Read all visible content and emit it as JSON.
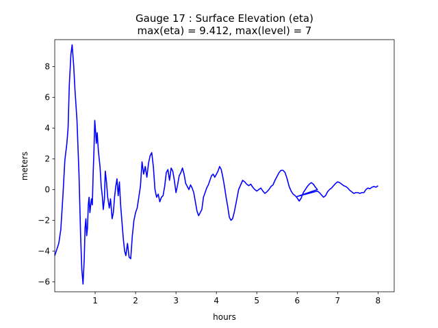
{
  "chart_data": {
    "type": "line",
    "title": "Gauge 17 : Surface Elevation (eta)",
    "subtitle": "max(eta) =   9.412,    max(level) = 7",
    "xlabel": "hours",
    "ylabel": "meters",
    "xlim": [
      0.0,
      8.4
    ],
    "ylim": [
      -6.65,
      9.75
    ],
    "xticks": [
      1,
      2,
      3,
      4,
      5,
      6,
      7,
      8
    ],
    "yticks": [
      -6,
      -4,
      -2,
      0,
      2,
      4,
      6,
      8
    ],
    "line_color": "#0000ff",
    "grid": false,
    "series": [
      {
        "name": "eta",
        "points": [
          [
            0.0,
            -4.3
          ],
          [
            0.05,
            -3.9
          ],
          [
            0.1,
            -3.5
          ],
          [
            0.15,
            -2.6
          ],
          [
            0.2,
            -0.5
          ],
          [
            0.25,
            1.9
          ],
          [
            0.3,
            3.0
          ],
          [
            0.33,
            4.0
          ],
          [
            0.36,
            6.8
          ],
          [
            0.4,
            8.8
          ],
          [
            0.43,
            9.412
          ],
          [
            0.47,
            8.0
          ],
          [
            0.5,
            6.5
          ],
          [
            0.55,
            4.5
          ],
          [
            0.6,
            1.0
          ],
          [
            0.64,
            -3.0
          ],
          [
            0.67,
            -5.2
          ],
          [
            0.7,
            -6.15
          ],
          [
            0.73,
            -4.5
          ],
          [
            0.75,
            -2.5
          ],
          [
            0.77,
            -1.9
          ],
          [
            0.79,
            -3.0
          ],
          [
            0.81,
            -2.5
          ],
          [
            0.83,
            -1.0
          ],
          [
            0.85,
            -0.5
          ],
          [
            0.87,
            -1.5
          ],
          [
            0.89,
            -1.0
          ],
          [
            0.91,
            -0.6
          ],
          [
            0.93,
            -1.0
          ],
          [
            0.95,
            1.0
          ],
          [
            0.97,
            2.5
          ],
          [
            0.99,
            4.5
          ],
          [
            1.01,
            3.8
          ],
          [
            1.03,
            3.0
          ],
          [
            1.05,
            3.7
          ],
          [
            1.08,
            2.5
          ],
          [
            1.12,
            1.5
          ],
          [
            1.15,
            0.2
          ],
          [
            1.18,
            -0.5
          ],
          [
            1.2,
            -1.3
          ],
          [
            1.23,
            -0.6
          ],
          [
            1.25,
            1.2
          ],
          [
            1.28,
            0.5
          ],
          [
            1.31,
            -0.5
          ],
          [
            1.35,
            -1.2
          ],
          [
            1.38,
            -0.6
          ],
          [
            1.42,
            -1.9
          ],
          [
            1.45,
            -1.5
          ],
          [
            1.48,
            -0.5
          ],
          [
            1.51,
            0.2
          ],
          [
            1.54,
            0.7
          ],
          [
            1.57,
            -0.4
          ],
          [
            1.6,
            0.5
          ],
          [
            1.63,
            -1.0
          ],
          [
            1.66,
            -2.0
          ],
          [
            1.7,
            -3.3
          ],
          [
            1.73,
            -4.0
          ],
          [
            1.76,
            -4.3
          ],
          [
            1.8,
            -3.5
          ],
          [
            1.84,
            -4.4
          ],
          [
            1.88,
            -4.5
          ],
          [
            1.92,
            -3.0
          ],
          [
            1.96,
            -2.0
          ],
          [
            2.0,
            -1.5
          ],
          [
            2.04,
            -1.2
          ],
          [
            2.08,
            -0.5
          ],
          [
            2.12,
            0.2
          ],
          [
            2.16,
            1.8
          ],
          [
            2.2,
            1.0
          ],
          [
            2.24,
            1.5
          ],
          [
            2.28,
            0.8
          ],
          [
            2.32,
            1.7
          ],
          [
            2.36,
            2.2
          ],
          [
            2.4,
            2.4
          ],
          [
            2.44,
            1.5
          ],
          [
            2.48,
            0.0
          ],
          [
            2.52,
            -0.5
          ],
          [
            2.56,
            -0.3
          ],
          [
            2.6,
            -0.8
          ],
          [
            2.64,
            -0.5
          ],
          [
            2.68,
            -0.4
          ],
          [
            2.72,
            0.2
          ],
          [
            2.76,
            1.1
          ],
          [
            2.8,
            1.3
          ],
          [
            2.84,
            0.6
          ],
          [
            2.88,
            1.4
          ],
          [
            2.92,
            1.2
          ],
          [
            2.96,
            0.6
          ],
          [
            3.0,
            -0.2
          ],
          [
            3.04,
            0.3
          ],
          [
            3.08,
            0.9
          ],
          [
            3.12,
            1.1
          ],
          [
            3.16,
            1.4
          ],
          [
            3.2,
            1.0
          ],
          [
            3.24,
            0.4
          ],
          [
            3.28,
            0.2
          ],
          [
            3.32,
            0.0
          ],
          [
            3.36,
            0.3
          ],
          [
            3.4,
            0.1
          ],
          [
            3.44,
            -0.2
          ],
          [
            3.48,
            -0.8
          ],
          [
            3.52,
            -1.4
          ],
          [
            3.56,
            -1.7
          ],
          [
            3.6,
            -1.5
          ],
          [
            3.64,
            -1.3
          ],
          [
            3.68,
            -0.5
          ],
          [
            3.72,
            -0.2
          ],
          [
            3.76,
            0.1
          ],
          [
            3.8,
            0.3
          ],
          [
            3.84,
            0.6
          ],
          [
            3.88,
            0.9
          ],
          [
            3.92,
            1.0
          ],
          [
            3.96,
            0.8
          ],
          [
            4.0,
            1.0
          ],
          [
            4.04,
            1.2
          ],
          [
            4.08,
            1.5
          ],
          [
            4.12,
            1.3
          ],
          [
            4.16,
            0.8
          ],
          [
            4.2,
            0.2
          ],
          [
            4.24,
            -0.5
          ],
          [
            4.28,
            -1.1
          ],
          [
            4.32,
            -1.8
          ],
          [
            4.36,
            -2.0
          ],
          [
            4.4,
            -1.9
          ],
          [
            4.44,
            -1.5
          ],
          [
            4.5,
            -0.7
          ],
          [
            4.55,
            0.0
          ],
          [
            4.6,
            0.3
          ],
          [
            4.65,
            0.6
          ],
          [
            4.7,
            0.5
          ],
          [
            4.75,
            0.35
          ],
          [
            4.8,
            0.25
          ],
          [
            4.85,
            0.35
          ],
          [
            4.9,
            0.15
          ],
          [
            4.95,
            0.0
          ],
          [
            5.0,
            -0.1
          ],
          [
            5.05,
            0.0
          ],
          [
            5.1,
            0.1
          ],
          [
            5.15,
            -0.1
          ],
          [
            5.2,
            -0.25
          ],
          [
            5.25,
            -0.15
          ],
          [
            5.3,
            0.0
          ],
          [
            5.35,
            0.2
          ],
          [
            5.4,
            0.3
          ],
          [
            5.45,
            0.6
          ],
          [
            5.5,
            0.85
          ],
          [
            5.55,
            1.1
          ],
          [
            5.6,
            1.25
          ],
          [
            5.65,
            1.25
          ],
          [
            5.7,
            1.1
          ],
          [
            5.75,
            0.7
          ],
          [
            5.8,
            0.2
          ],
          [
            5.85,
            -0.1
          ],
          [
            5.9,
            -0.3
          ],
          [
            5.95,
            -0.4
          ],
          [
            6.0,
            -0.55
          ],
          [
            6.05,
            -0.75
          ],
          [
            6.1,
            -0.55
          ],
          [
            6.15,
            -0.2
          ],
          [
            6.2,
            0.0
          ],
          [
            6.25,
            0.2
          ],
          [
            6.3,
            0.35
          ],
          [
            6.35,
            0.45
          ],
          [
            6.4,
            0.35
          ],
          [
            6.45,
            0.15
          ],
          [
            6.5,
            0.0
          ],
          [
            6.0,
            -0.45
          ],
          [
            6.5,
            -0.1
          ],
          [
            6.55,
            -0.2
          ],
          [
            6.6,
            -0.35
          ],
          [
            6.65,
            -0.5
          ],
          [
            6.7,
            -0.4
          ],
          [
            6.75,
            -0.15
          ],
          [
            6.8,
            0.0
          ],
          [
            6.85,
            0.1
          ],
          [
            6.9,
            0.25
          ],
          [
            6.95,
            0.4
          ],
          [
            7.0,
            0.5
          ],
          [
            7.05,
            0.45
          ],
          [
            7.1,
            0.35
          ],
          [
            7.15,
            0.25
          ],
          [
            7.2,
            0.2
          ],
          [
            7.25,
            0.1
          ],
          [
            7.3,
            -0.05
          ],
          [
            7.35,
            -0.15
          ],
          [
            7.4,
            -0.25
          ],
          [
            7.45,
            -0.2
          ],
          [
            7.5,
            -0.2
          ],
          [
            7.55,
            -0.25
          ],
          [
            7.6,
            -0.2
          ],
          [
            7.65,
            -0.2
          ],
          [
            7.7,
            0.0
          ],
          [
            7.75,
            0.1
          ],
          [
            7.8,
            0.05
          ],
          [
            7.85,
            0.15
          ],
          [
            7.9,
            0.2
          ],
          [
            7.95,
            0.15
          ],
          [
            8.0,
            0.25
          ]
        ]
      }
    ]
  }
}
